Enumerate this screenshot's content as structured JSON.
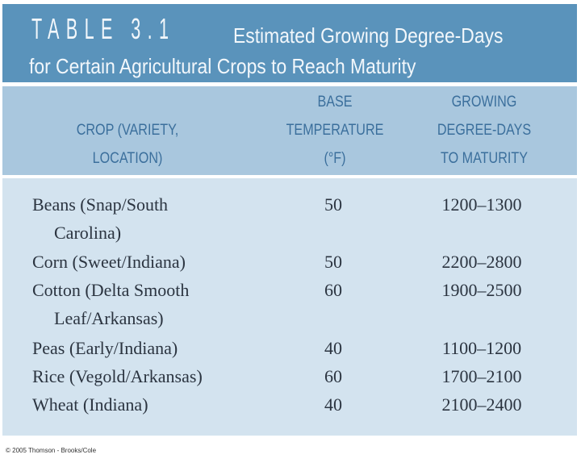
{
  "title": {
    "label": "TABLE 3.1",
    "line1": "Estimated Growing Degree-Days",
    "line2": "for Certain Agricultural Crops to Reach Maturity"
  },
  "headers": {
    "crop": [
      "CROP (VARIETY,",
      "LOCATION)"
    ],
    "temp": [
      "BASE",
      "TEMPERATURE",
      "(°F)"
    ],
    "gdd": [
      "GROWING",
      "DEGREE-DAYS",
      "TO MATURITY"
    ]
  },
  "rows": [
    {
      "crop": [
        "Beans (Snap/South",
        "Carolina)"
      ],
      "temp": "50",
      "gdd": "1200–1300"
    },
    {
      "crop": [
        "Corn (Sweet/Indiana)"
      ],
      "temp": "50",
      "gdd": "2200–2800"
    },
    {
      "crop": [
        "Cotton (Delta Smooth",
        "Leaf/Arkansas)"
      ],
      "temp": "60",
      "gdd": "1900–2500"
    },
    {
      "crop": [
        "Peas (Early/Indiana)"
      ],
      "temp": "40",
      "gdd": "1100–1200"
    },
    {
      "crop": [
        "Rice (Vegold/Arkansas)"
      ],
      "temp": "60",
      "gdd": "1700–2100"
    },
    {
      "crop": [
        "Wheat (Indiana)"
      ],
      "temp": "40",
      "gdd": "2100–2400"
    }
  ],
  "footer": "© 2005 Thomson - Brooks/Cole",
  "colors": {
    "title_band": "#5a93bb",
    "header_band": "#a9c7de",
    "body_band": "#d3e3ef",
    "header_text": "#3b6f9c"
  }
}
